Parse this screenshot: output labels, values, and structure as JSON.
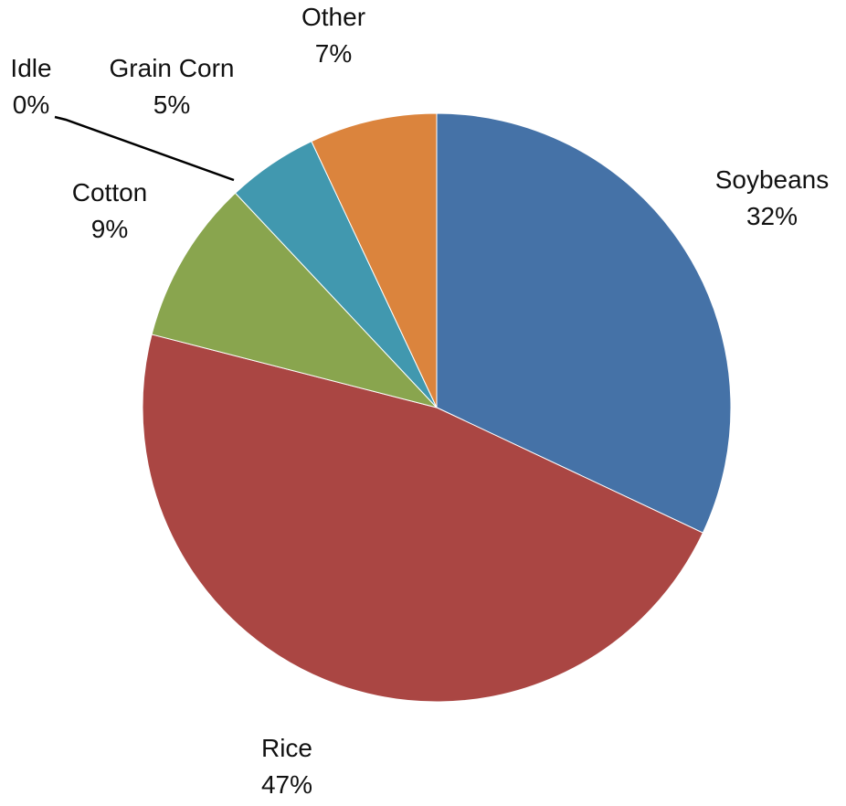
{
  "chart_data": {
    "type": "pie",
    "title": "",
    "start_angle_deg": 0,
    "direction": "clockwise",
    "legend": "none",
    "slices": [
      {
        "name": "Soybeans",
        "value": 32,
        "label": "32%",
        "color": "#4572A7"
      },
      {
        "name": "Rice",
        "value": 47,
        "label": "47%",
        "color": "#AA4643"
      },
      {
        "name": "Cotton",
        "value": 9,
        "label": "9%",
        "color": "#89A54E"
      },
      {
        "name": "Idle",
        "value": 0,
        "label": "0%",
        "color": "#71588F"
      },
      {
        "name": "Grain Corn",
        "value": 5,
        "label": "5%",
        "color": "#4198AF"
      },
      {
        "name": "Other",
        "value": 7,
        "label": "7%",
        "color": "#DB843D"
      }
    ]
  }
}
